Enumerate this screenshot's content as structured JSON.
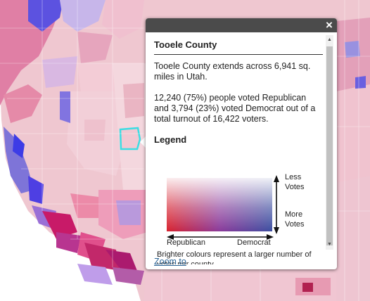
{
  "map": {
    "colors": {
      "republican": "#e8b6c0",
      "democrat": "#9a97e6",
      "highlight": "#3cdde3"
    },
    "highlighted_county": "Tooele County"
  },
  "popup": {
    "close_icon": "×",
    "title": "Tooele County",
    "description": "Tooele County extends across 6,941 sq. miles in Utah.",
    "votes_text": "12,240 (75%) people voted Republican and 3,794 (23%) voted Democrat out of a total turnout of 16,422 voters.",
    "legend": {
      "title": "Legend",
      "less_votes": "Less\nVotes",
      "more_votes": "More\nVotes",
      "republican_label": "Republican",
      "democrat_label": "Democrat",
      "note": "Brighter colours represent a larger number of votes per county."
    },
    "zoom_link": "Zoom to"
  }
}
